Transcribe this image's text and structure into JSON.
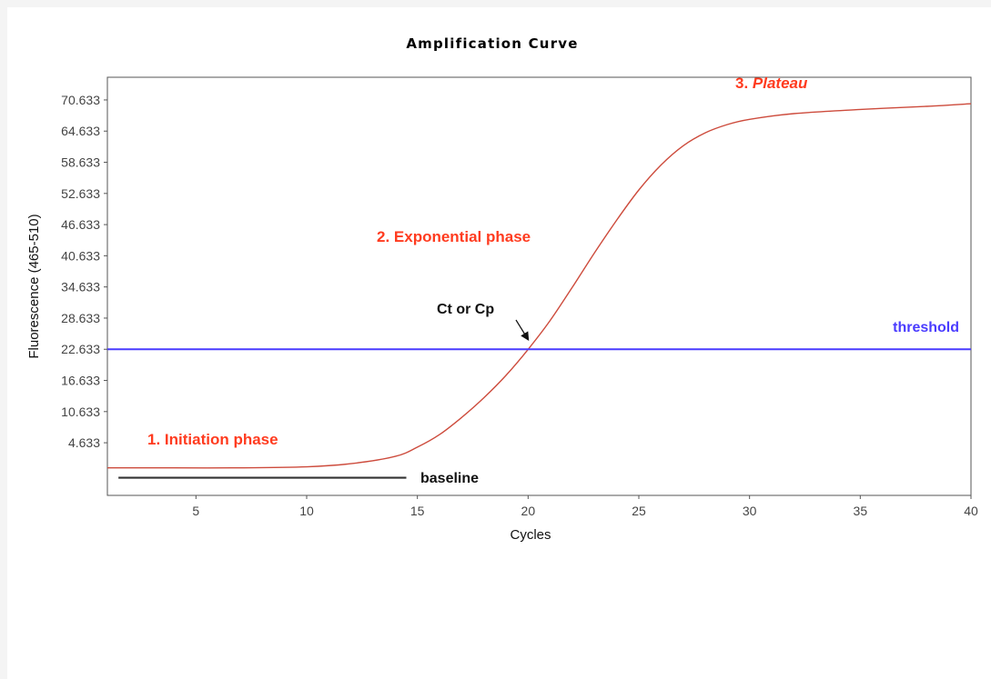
{
  "chart_data": {
    "type": "line",
    "title": "Amplification Curve",
    "xlabel": "Cycles",
    "ylabel": "Fluorescence (465-510)",
    "xlim": [
      1,
      40
    ],
    "ylim": [
      -5.5,
      75
    ],
    "x_ticks": [
      5,
      10,
      15,
      20,
      25,
      30,
      35,
      40
    ],
    "y_ticks": [
      4.633,
      10.633,
      16.633,
      22.633,
      28.633,
      34.633,
      40.633,
      46.633,
      52.633,
      58.633,
      64.633,
      70.633
    ],
    "y_tick_labels": [
      "4.633",
      "10.633",
      "16.633",
      "22.633",
      "28.633",
      "34.633",
      "40.633",
      "46.633",
      "52.633",
      "58.633",
      "64.633",
      "70.633"
    ],
    "grid": false,
    "series": [
      {
        "x": [
          1,
          4,
          7,
          10,
          12,
          14,
          15,
          16,
          17,
          18,
          19,
          20,
          21,
          22,
          23,
          24,
          25,
          26,
          27,
          28,
          29,
          30,
          32,
          35,
          38,
          40
        ],
        "values": [
          -0.2,
          -0.2,
          -0.2,
          0,
          0.6,
          2,
          3.8,
          6.2,
          9.5,
          13.3,
          17.6,
          22.6,
          28.2,
          34.6,
          41.2,
          47.5,
          53.3,
          58.1,
          61.8,
          64.3,
          65.9,
          66.9,
          68,
          68.8,
          69.4,
          69.9
        ],
        "color": "#cd4b3c"
      },
      {
        "x": [
          1,
          40
        ],
        "values": [
          22.633,
          22.633
        ],
        "color": "#4a3cff"
      },
      {
        "x": [
          1.5,
          14.5
        ],
        "values": [
          -2.1,
          -2.1
        ],
        "color": "#333333"
      }
    ],
    "annotations": [
      {
        "text": "threshold",
        "color": "#4a3cff"
      },
      {
        "text": "baseline",
        "color": "#111111"
      },
      {
        "text": "Ct or Cp",
        "color": "#111111",
        "x": 20,
        "y": 22.633
      },
      {
        "text": "1. Initiation phase",
        "color": "#ff3b1f"
      },
      {
        "text": "2. Exponential phase",
        "color": "#ff3b1f"
      },
      {
        "text_prefix": "3. ",
        "text_italic": "Plateau",
        "color": "#ff3b1f"
      }
    ]
  }
}
